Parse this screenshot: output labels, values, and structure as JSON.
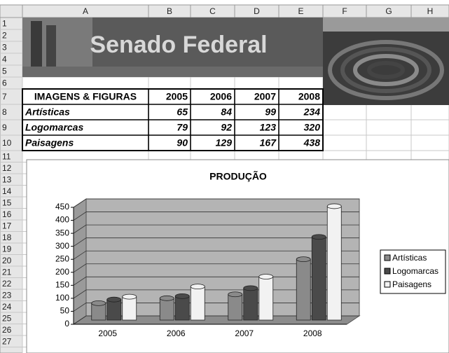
{
  "columns": [
    "A",
    "B",
    "C",
    "D",
    "E",
    "F",
    "G",
    "H"
  ],
  "rows": [
    "1",
    "2",
    "3",
    "4",
    "5",
    "6",
    "7",
    "8",
    "9",
    "10",
    "11",
    "12",
    "13",
    "14",
    "15",
    "16",
    "17",
    "18",
    "19",
    "20",
    "21",
    "22",
    "23",
    "24",
    "25",
    "26",
    "27"
  ],
  "banner": {
    "title": "Senado Federal"
  },
  "table": {
    "title": "IMAGENS & FIGURAS"
  },
  "chart_data": {
    "type": "bar3d",
    "title": "PRODUÇÃO",
    "categories": [
      "2005",
      "2006",
      "2007",
      "2008"
    ],
    "series": [
      {
        "name": "Artísticas",
        "color": "#8a8a8a",
        "values": [
          65,
          84,
          99,
          234
        ]
      },
      {
        "name": "Logomarcas",
        "color": "#4a4a4a",
        "values": [
          79,
          92,
          123,
          320
        ]
      },
      {
        "name": "Paisagens",
        "color": "#f2f2f2",
        "values": [
          90,
          129,
          167,
          438
        ]
      }
    ],
    "ylim": [
      0,
      450
    ],
    "yticks": [
      0,
      50,
      100,
      150,
      200,
      250,
      300,
      350,
      400,
      450
    ],
    "grid": true,
    "legend": "right"
  }
}
